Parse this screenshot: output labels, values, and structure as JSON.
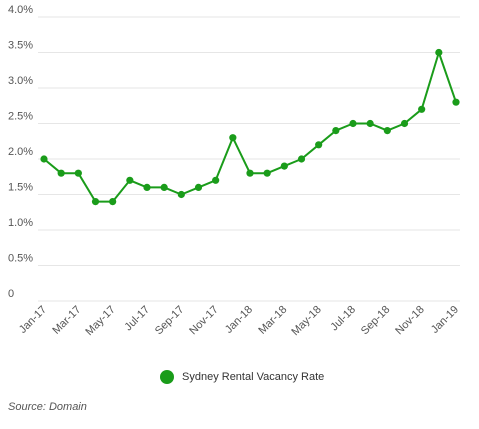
{
  "chart_data": {
    "type": "line",
    "title": "",
    "xlabel": "",
    "ylabel": "",
    "x": [
      "Jan-17",
      "Feb-17",
      "Mar-17",
      "Apr-17",
      "May-17",
      "Jun-17",
      "Jul-17",
      "Aug-17",
      "Sep-17",
      "Oct-17",
      "Nov-17",
      "Dec-17",
      "Jan-18",
      "Feb-18",
      "Mar-18",
      "Apr-18",
      "May-18",
      "Jun-18",
      "Jul-18",
      "Aug-18",
      "Sep-18",
      "Oct-18",
      "Nov-18",
      "Dec-18",
      "Jan-19"
    ],
    "x_tick_labels": [
      "Jan-17",
      "Mar-17",
      "May-17",
      "Jul-17",
      "Sep-17",
      "Nov-17",
      "Jan-18",
      "Mar-18",
      "May-18",
      "Jul-18",
      "Sep-18",
      "Nov-18",
      "Jan-19"
    ],
    "series": [
      {
        "name": "Sydney Rental Vacancy Rate",
        "color": "#1a9c1a",
        "values": [
          2.0,
          1.8,
          1.8,
          1.4,
          1.4,
          1.7,
          1.6,
          1.6,
          1.5,
          1.6,
          1.7,
          2.3,
          1.8,
          1.8,
          1.9,
          2.0,
          2.2,
          2.4,
          2.5,
          2.5,
          2.4,
          2.5,
          2.7,
          3.5,
          2.8
        ]
      }
    ],
    "ylim": [
      0,
      4.0
    ],
    "y_tick_values": [
      0,
      0.5,
      1.0,
      1.5,
      2.0,
      2.5,
      3.0,
      3.5,
      4.0
    ],
    "y_tick_labels": [
      "0",
      "0.5%",
      "1.0%",
      "1.5%",
      "2.0%",
      "2.5%",
      "3.0%",
      "3.5%",
      "4.0%"
    ],
    "grid": "horizontal",
    "legend_position": "bottom-center"
  },
  "legend": {
    "label": "Sydney Rental Vacancy Rate"
  },
  "source": "Source: Domain",
  "colors": {
    "series": "#1a9c1a",
    "grid": "#e6e6e6",
    "axis_text": "#555555"
  }
}
